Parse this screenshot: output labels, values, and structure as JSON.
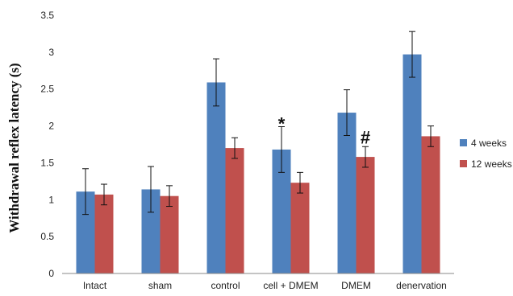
{
  "chart_data": {
    "type": "bar",
    "title": "",
    "xlabel": "",
    "ylabel": "Withdrawal  reflex  latency (s)",
    "ylim": [
      0,
      3.5
    ],
    "yticks": [
      "0",
      "0.5",
      "1",
      "1.5",
      "2",
      "2.5",
      "3",
      "3.5"
    ],
    "categories": [
      "Intact",
      "sham",
      "control",
      "cell + DMEM",
      "DMEM",
      "denervation"
    ],
    "series": [
      {
        "name": "4 weeks",
        "color": "#4F81BD",
        "values": [
          1.11,
          1.14,
          2.59,
          1.68,
          2.18,
          2.97
        ],
        "errors": [
          0.31,
          0.31,
          0.32,
          0.31,
          0.31,
          0.31
        ]
      },
      {
        "name": "12 weeks",
        "color": "#C0504D",
        "values": [
          1.07,
          1.05,
          1.7,
          1.23,
          1.58,
          1.86
        ],
        "errors": [
          0.14,
          0.14,
          0.14,
          0.14,
          0.14,
          0.14
        ]
      }
    ],
    "annotations": [
      {
        "text": "*",
        "category": "cell + DMEM",
        "series": "4 weeks"
      },
      {
        "text": "#",
        "category": "DMEM",
        "series": "12 weeks"
      }
    ],
    "legend": "right",
    "grid": false
  }
}
